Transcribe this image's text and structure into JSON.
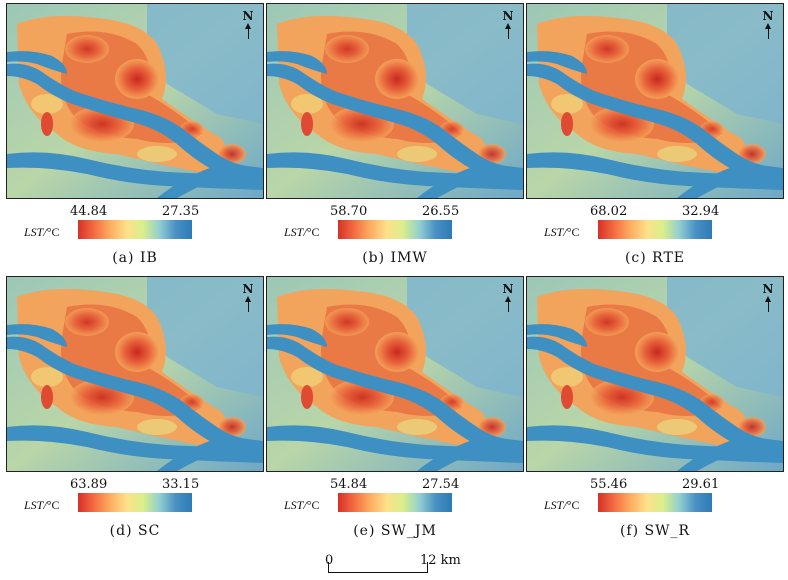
{
  "legend_title": "LST/",
  "legend_unit": "°C",
  "north_label": "N",
  "panels": [
    {
      "caption": "(a) IB",
      "high": "44.84",
      "low": "27.35"
    },
    {
      "caption": "(b) IMW",
      "high": "58.70",
      "low": "26.55"
    },
    {
      "caption": "(c) RTE",
      "high": "68.02",
      "low": "32.94"
    },
    {
      "caption": "(d) SC",
      "high": "63.89",
      "low": "33.15"
    },
    {
      "caption": "(e) SW_JM",
      "high": "54.84",
      "low": "27.54"
    },
    {
      "caption": "(f) SW_R",
      "high": "55.46",
      "low": "29.61"
    }
  ],
  "scale_bar": {
    "start": "0",
    "end": "12 km"
  },
  "colors": {
    "hot": "#d73027",
    "warm": "#fdae61",
    "mid": "#fee08b",
    "cool": "#4a90c4",
    "water": "#3e8fc2"
  }
}
